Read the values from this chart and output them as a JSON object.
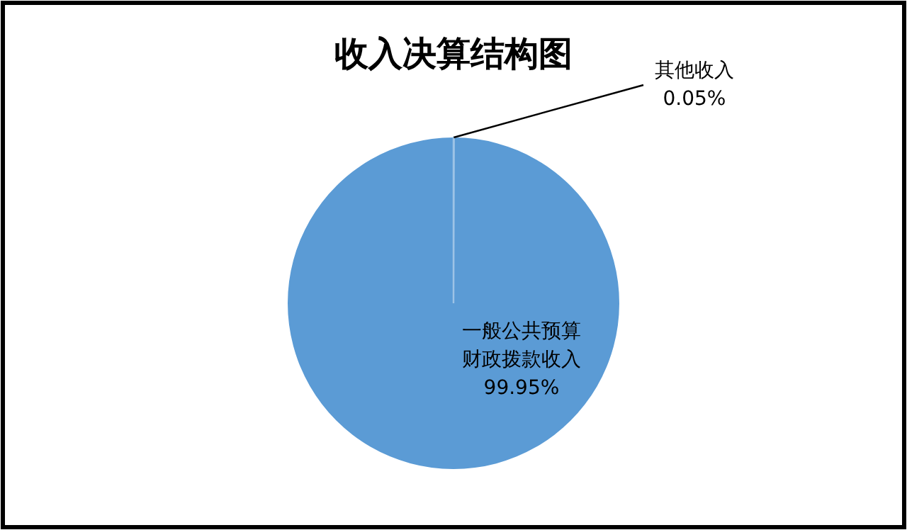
{
  "chart_data": {
    "type": "pie",
    "title": "收入决算结构图",
    "categories": [
      "其他收入",
      "一般公共预算财政拨款收入"
    ],
    "values": [
      0.05,
      99.95
    ],
    "value_labels": [
      "0.05%",
      "99.95%"
    ],
    "colors": [
      "#5b9bd5",
      "#5b9bd5"
    ],
    "legend": false
  }
}
